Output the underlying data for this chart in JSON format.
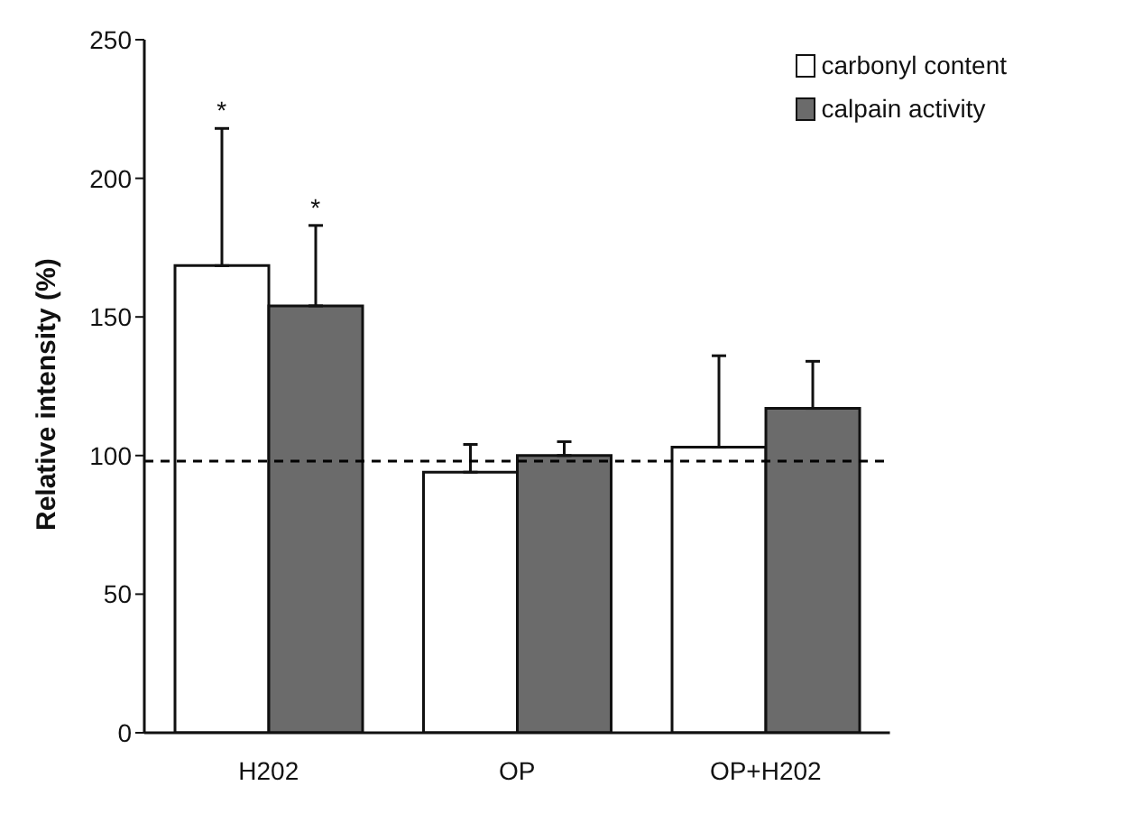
{
  "chart_data": {
    "type": "bar",
    "ylabel": "Relative intensity (%)",
    "categories": [
      "H202",
      "OP",
      "OP+H202"
    ],
    "series": [
      {
        "name": "carbonyl content",
        "color": "#ffffff",
        "values": [
          168.5,
          94,
          103
        ],
        "errors": [
          [
            168.5,
            218
          ],
          [
            94,
            104
          ],
          [
            103,
            136
          ]
        ]
      },
      {
        "name": "calpain activity",
        "color": "#6b6b6b",
        "values": [
          154,
          100,
          117
        ],
        "errors": [
          [
            154,
            183
          ],
          [
            100,
            105
          ],
          [
            117,
            134
          ]
        ]
      }
    ],
    "ylim": [
      0,
      250
    ],
    "yticks": [
      0,
      50,
      100,
      150,
      200,
      250
    ],
    "grid": false,
    "legend": "top right",
    "ref_lines": [
      {
        "axis": "y",
        "value": 98,
        "line_style": "dashed",
        "color": "#000000"
      }
    ],
    "annotations": [
      "*",
      "*"
    ]
  }
}
